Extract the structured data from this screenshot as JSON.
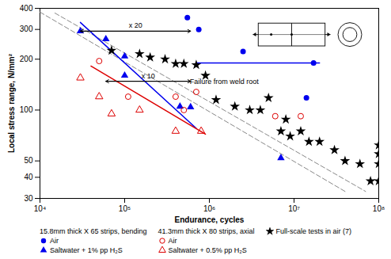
{
  "chart_data": {
    "type": "scatter",
    "log": true,
    "xlabel": "Endurance, cycles",
    "ylabel": "Local stress range, N/mm²",
    "xlim": [
      10000,
      100000000
    ],
    "ylim": [
      30,
      400
    ],
    "xticks": [
      {
        "value": 10000,
        "label": "10⁴"
      },
      {
        "value": 100000,
        "label": "10⁵"
      },
      {
        "value": 1000000,
        "label": "10⁶"
      },
      {
        "value": 10000000,
        "label": "10⁷"
      },
      {
        "value": 100000000,
        "label": "10⁸"
      }
    ],
    "yticks": [
      30,
      40,
      50,
      100,
      200,
      300,
      400
    ],
    "grid": false,
    "legend": "bottom",
    "series": [
      {
        "type": "line",
        "color": "#888888",
        "line_style": "dashed",
        "x": [
          10000,
          40000000
        ],
        "values": [
          380,
          33
        ]
      },
      {
        "type": "line",
        "color": "#888888",
        "line_style": "dashed",
        "x": [
          15000,
          70000000
        ],
        "values": [
          375,
          33
        ]
      },
      {
        "type": "line",
        "color": "#0000ee",
        "line_style": "solid",
        "x": [
          30000,
          700000
        ],
        "values": [
          330,
          78
        ]
      },
      {
        "type": "line",
        "color": "#0000ee",
        "line_style": "solid",
        "x": [
          700000,
          20000000
        ],
        "values": [
          190,
          190
        ]
      },
      {
        "type": "line",
        "color": "#dd0000",
        "line_style": "solid",
        "x": [
          40000,
          900000
        ],
        "values": [
          182,
          72
        ]
      },
      {
        "name": "Full-scale tests in air (7)",
        "type": "scatter",
        "marker": "star",
        "color": "#000000",
        "x": [
          70000,
          150000,
          200000,
          300000,
          400000,
          500000,
          700000,
          900000,
          1200000,
          2000000,
          3000000,
          4000000,
          5000000,
          7000000,
          8000000,
          9000000,
          12000000,
          15000000,
          20000000,
          30000000,
          40000000,
          60000000,
          80000000,
          100000000,
          100000000,
          100000000,
          100000000
        ],
        "values": [
          225,
          215,
          205,
          200,
          188,
          188,
          185,
          160,
          115,
          105,
          100,
          100,
          118,
          75,
          88,
          70,
          75,
          65,
          65,
          58,
          50,
          48,
          38,
          38,
          48,
          55,
          62
        ]
      },
      {
        "name": "Air",
        "group": "15.8mm thick X 65 strips, bending",
        "type": "scatter",
        "marker": "circle",
        "color": "#0000ee",
        "x": [
          550000,
          750000,
          2500000,
          14000000,
          17000000
        ],
        "values": [
          352,
          300,
          222,
          118,
          190
        ]
      },
      {
        "name": "Saltwater + 1% pp H₂S",
        "group": "15.8mm thick X 65 strips, bending",
        "type": "scatter",
        "marker": "triangle",
        "color": "#0000ee",
        "x": [
          30000,
          60000,
          100000,
          100000,
          450000,
          600000,
          7000000
        ],
        "values": [
          293,
          263,
          208,
          160,
          105,
          104,
          52
        ]
      },
      {
        "name": "Air",
        "group": "41.3mm thick X 80 strips, axial",
        "type": "scatter",
        "marker": "open circle",
        "color": "#dd0000",
        "x": [
          50000,
          110000,
          400000,
          500000,
          700000,
          6000000,
          12000000
        ],
        "values": [
          195,
          120,
          120,
          100,
          128,
          92,
          92
        ]
      },
      {
        "name": "Saltwater + 0.5% pp H₂S",
        "group": "41.3mm thick X 80 strips, axial",
        "type": "scatter",
        "marker": "open triangle",
        "color": "#dd0000",
        "x": [
          30000,
          50000,
          70000,
          150000,
          400000,
          800000
        ],
        "values": [
          155,
          120,
          95,
          100,
          75,
          75
        ]
      }
    ],
    "annotations": [
      {
        "text": "x 20",
        "x1": 30000,
        "x2": 600000,
        "y": 293
      },
      {
        "text": "x 10",
        "x1": 60000,
        "x2": 600000,
        "y": 148
      },
      {
        "text": "Failure from weld root"
      }
    ]
  }
}
